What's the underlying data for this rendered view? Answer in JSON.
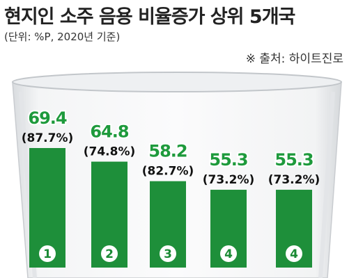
{
  "chart_data": {
    "type": "bar",
    "title": "현지인 소주 음용 비율증가 상위 5개국",
    "unit_note": "(단위: %P, 2020년 기준)",
    "source": "※ 출처: 하이트진로",
    "categories": [
      "1",
      "2",
      "3",
      "4",
      "4"
    ],
    "values": [
      69.4,
      64.8,
      58.2,
      55.3,
      55.3
    ],
    "value_labels": [
      "69.4",
      "64.8",
      "58.2",
      "55.3",
      "55.3"
    ],
    "secondary_labels": [
      "(87.7%)",
      "(74.8%)",
      "(82.7%)",
      "(73.2%)",
      "(73.2%)"
    ],
    "bar_color": "#1e8f3a",
    "value_color": "#1e9a3c",
    "rank_circle_color": "#ffffff",
    "grid": false,
    "legend": "none"
  }
}
